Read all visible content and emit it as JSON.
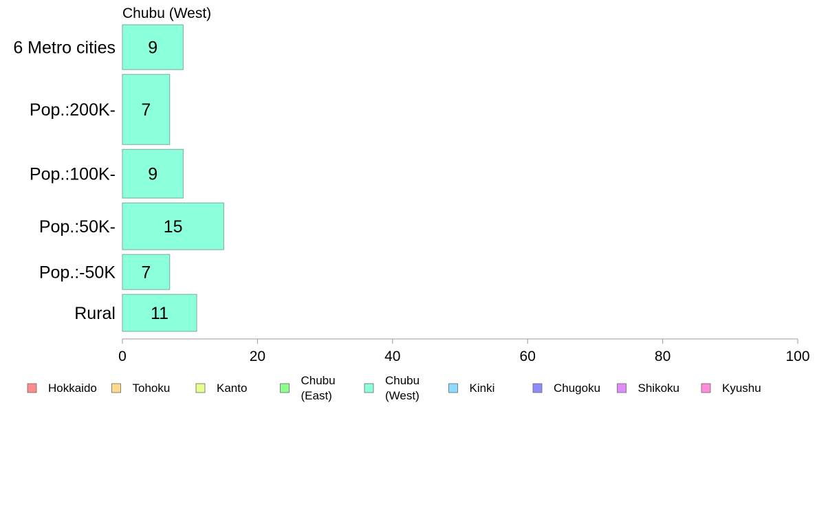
{
  "chart_data": {
    "type": "bar",
    "orientation": "horizontal",
    "title": "Chubu (West)",
    "categories": [
      "6 Metro cities",
      "Pop.:200K-",
      "Pop.:100K-",
      "Pop.:50K-",
      "Pop.:-50K",
      "Rural"
    ],
    "values": [
      9,
      7,
      9,
      15,
      7,
      11
    ],
    "bar_labels": [
      "9",
      "7",
      "9",
      "15",
      "7",
      "11"
    ],
    "relative_widths": [
      0.115,
      0.18,
      0.125,
      0.12,
      0.09,
      0.095
    ],
    "xlim": [
      0,
      100
    ],
    "xticks": [
      0,
      20,
      40,
      60,
      80,
      100
    ],
    "xtick_labels": [
      "0",
      "20",
      "40",
      "60",
      "80",
      "100"
    ],
    "bar_color": "#8cffdc",
    "bar_stroke": "#7aa99a",
    "grid": false,
    "legend_position": "bottom",
    "legend": [
      {
        "lines": [
          "Hokkaido"
        ],
        "color": "#ff8c8c"
      },
      {
        "lines": [
          "Tohoku"
        ],
        "color": "#ffd98c"
      },
      {
        "lines": [
          "Kanto"
        ],
        "color": "#e6ff8c"
      },
      {
        "lines": [
          "Chubu",
          "(East)"
        ],
        "color": "#8cff8c"
      },
      {
        "lines": [
          "Chubu",
          "(West)"
        ],
        "color": "#8cffdc"
      },
      {
        "lines": [
          "Kinki"
        ],
        "color": "#8cdcff"
      },
      {
        "lines": [
          "Chugoku"
        ],
        "color": "#8c8cff"
      },
      {
        "lines": [
          "Shikoku"
        ],
        "color": "#e08cff"
      },
      {
        "lines": [
          "Kyushu"
        ],
        "color": "#ff8cdc"
      }
    ]
  }
}
